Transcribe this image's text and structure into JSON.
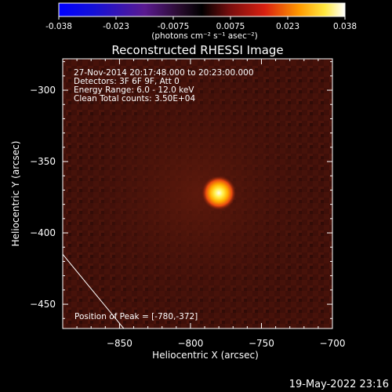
{
  "colorbar": {
    "ticks": [
      "-0.038",
      "-0.023",
      "-0.0075",
      "0.0075",
      "0.023",
      "0.038"
    ],
    "units": "(photons cm⁻² s⁻¹ asec⁻²)"
  },
  "plot": {
    "title": "Reconstructed RHESSI Image",
    "info_lines": [
      "27-Nov-2014 20:17:48.000 to 20:23:00.000",
      "Detectors: 3F 6F 9F, Att 0",
      "Energy Range: 6.0 - 12.0 keV",
      "Clean    Total counts: 3.50E+04"
    ],
    "peak_label": "Position of Peak = [-780,-372]"
  },
  "chart_data": {
    "type": "heatmap",
    "title": "Reconstructed RHESSI Image",
    "xlabel": "Heliocentric X (arcsec)",
    "ylabel": "Heliocentric Y (arcsec)",
    "xlim": [
      -890,
      -700
    ],
    "ylim": [
      -467,
      -278
    ],
    "xticks": [
      -850,
      -800,
      -750,
      -700
    ],
    "yticks": [
      -300,
      -350,
      -400,
      -450
    ],
    "colorbar_range": [
      -0.038,
      0.038
    ],
    "peak": {
      "x": -780,
      "y": -372
    },
    "limb_line": [
      [
        -890,
        -415
      ],
      [
        -847,
        -467
      ]
    ]
  },
  "footer": {
    "timestamp": "19-May-2022 23:16"
  }
}
